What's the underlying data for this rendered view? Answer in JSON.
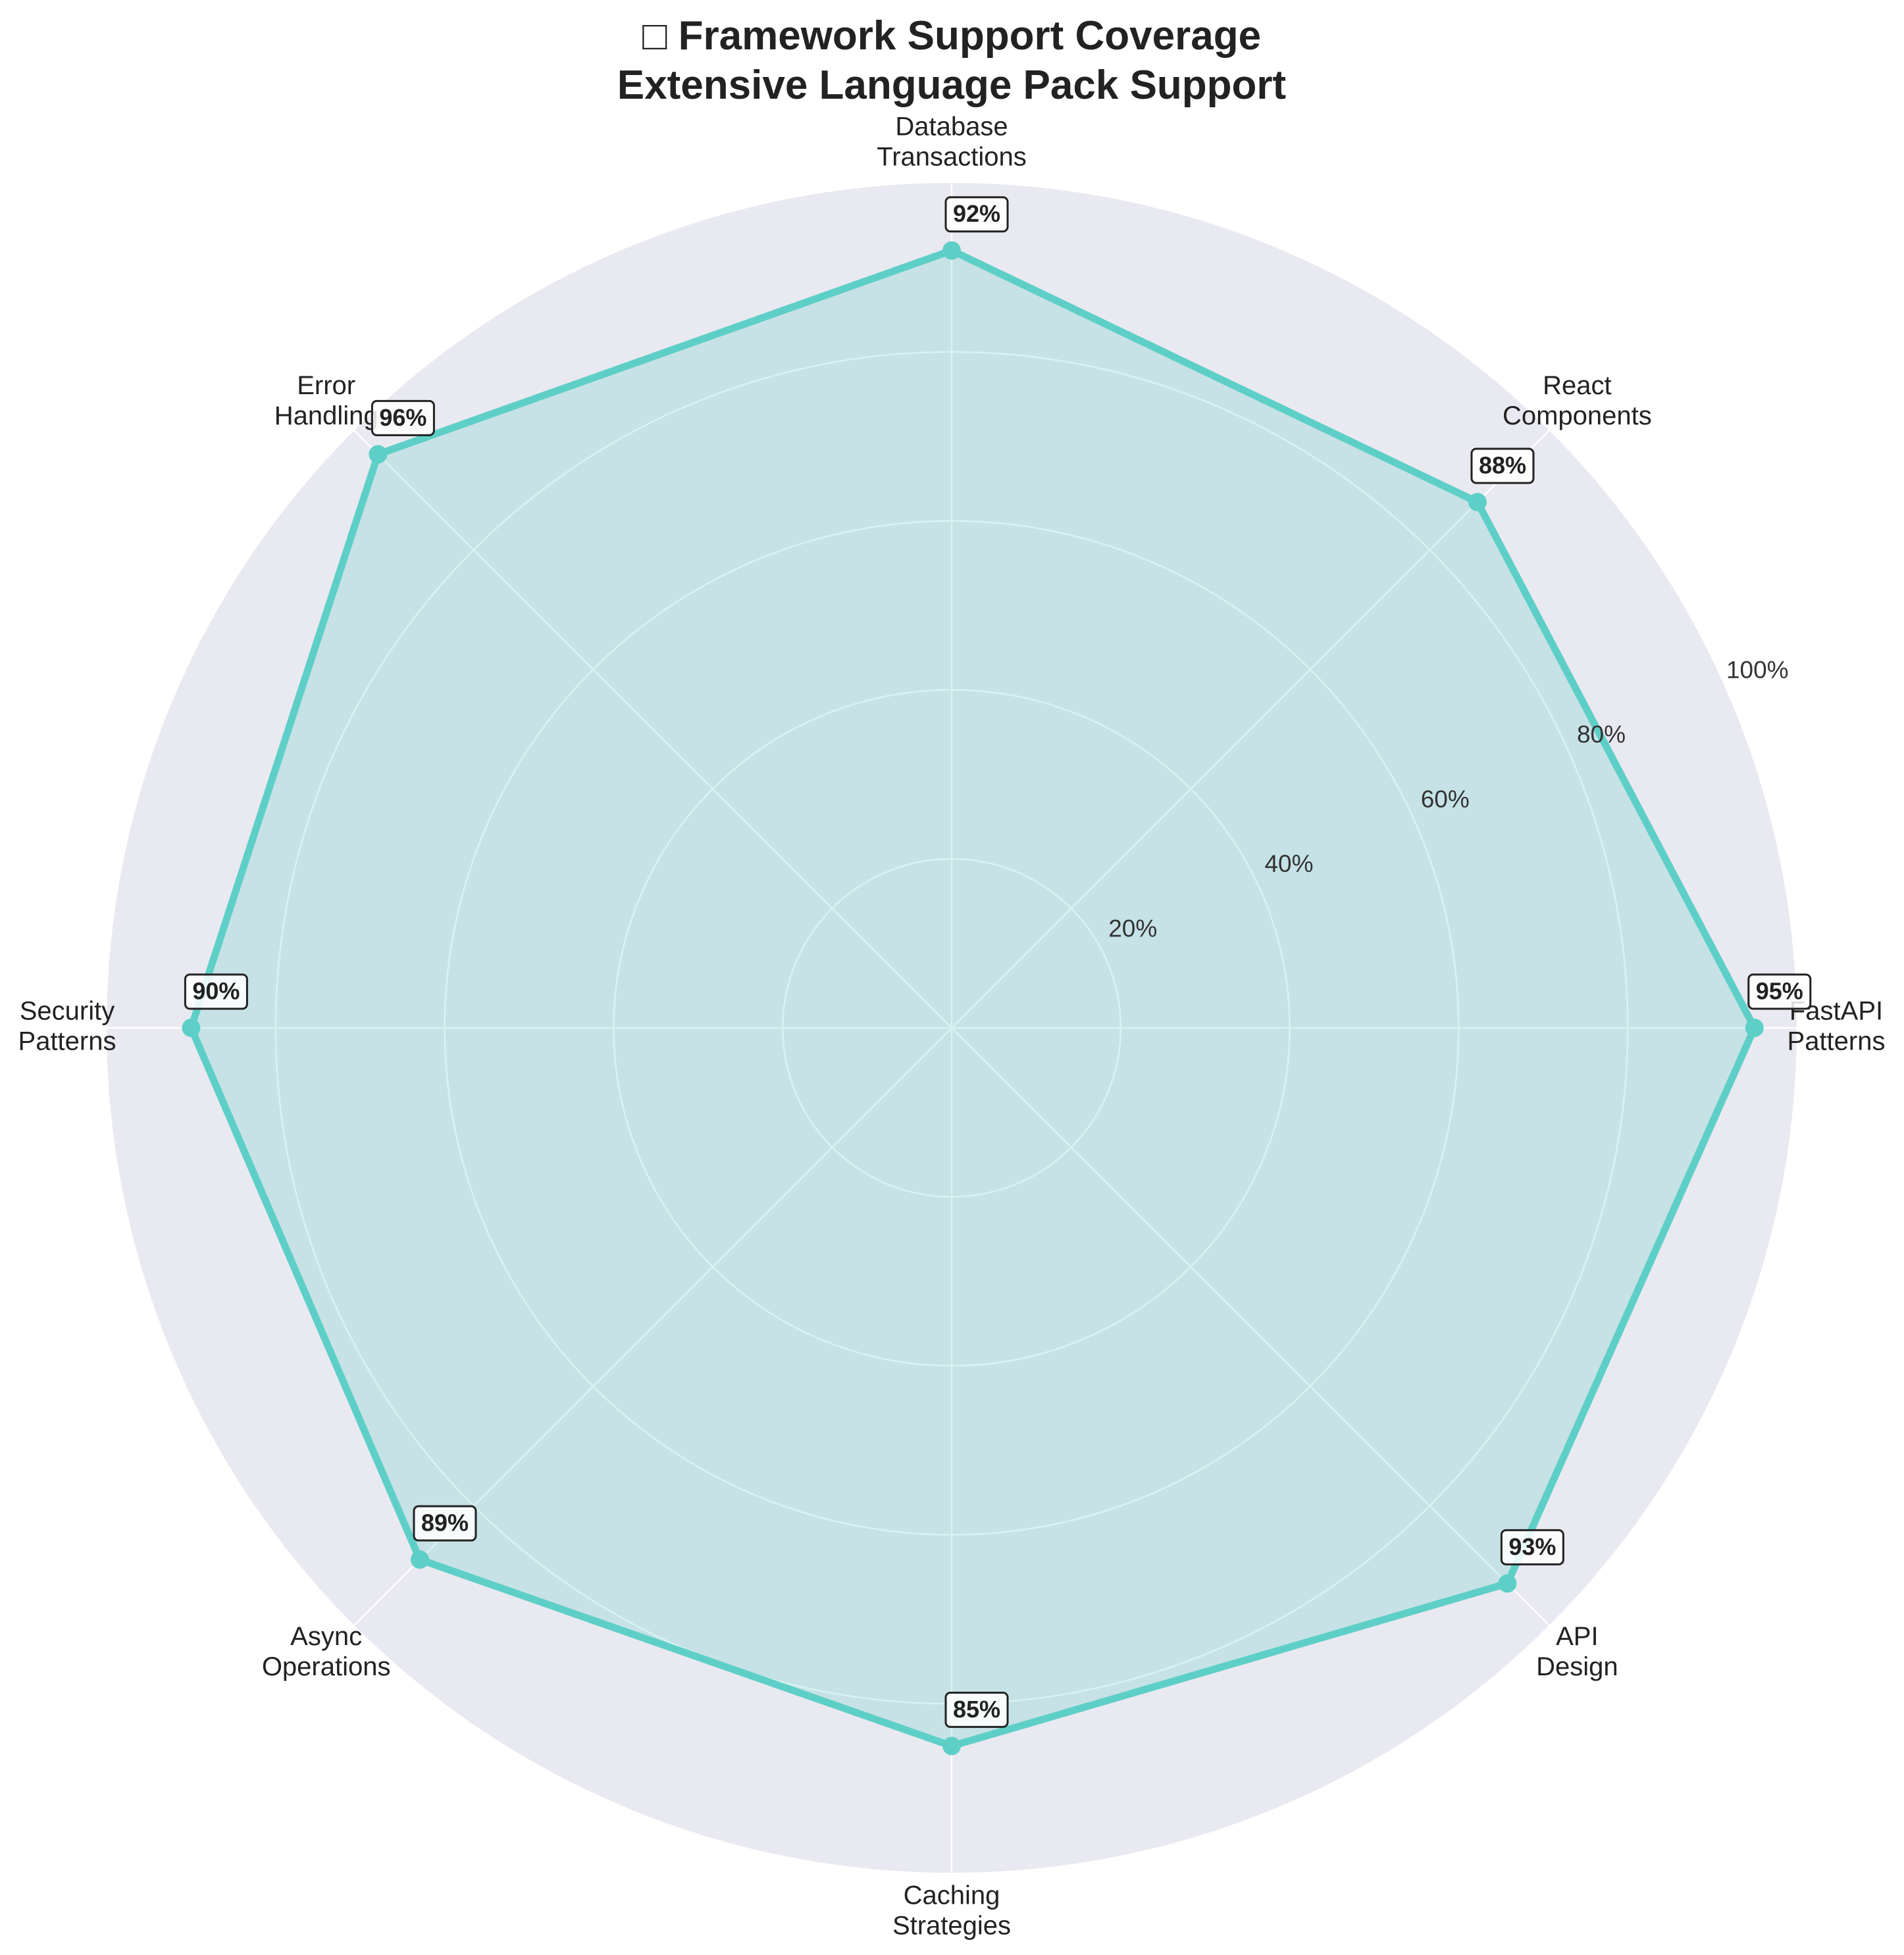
{
  "chart_data": {
    "type": "radar",
    "title": [
      "□ Framework Support Coverage",
      "Extensive Language Pack Support"
    ],
    "categories": [
      [
        "FastAPI",
        "Patterns"
      ],
      [
        "React",
        "Components"
      ],
      [
        "Database",
        "Transactions"
      ],
      [
        "Error",
        "Handling"
      ],
      [
        "Security",
        "Patterns"
      ],
      [
        "Async",
        "Operations"
      ],
      [
        "Caching",
        "Strategies"
      ],
      [
        "API",
        "Design"
      ]
    ],
    "values": [
      95,
      88,
      92,
      96,
      90,
      89,
      85,
      93
    ],
    "value_labels": [
      "95%",
      "88%",
      "92%",
      "96%",
      "90%",
      "89%",
      "85%",
      "93%"
    ],
    "rlim": [
      0,
      100
    ],
    "ticks": [
      20,
      40,
      60,
      80,
      100
    ],
    "tick_labels": [
      "20%",
      "40%",
      "60%",
      "80%",
      "100%"
    ],
    "grid": true,
    "colors": {
      "series": "#5ecfc7",
      "fill": "#5ecfc7",
      "background": "#e9e9f1",
      "grid": "#ffffff"
    }
  }
}
